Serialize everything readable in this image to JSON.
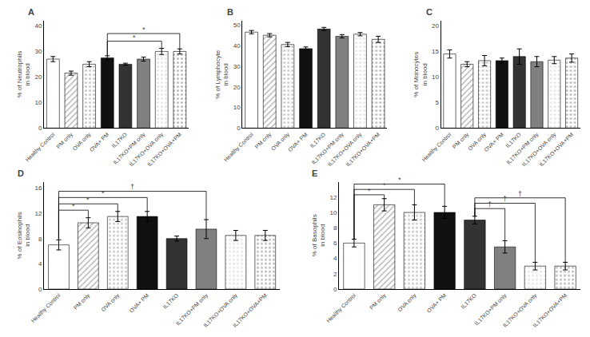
{
  "chart_data": [
    {
      "type": "bar",
      "title": "A",
      "categories": [
        "Healthy Control",
        "PM only",
        "OVA only",
        "OVA+ PM",
        "IL17KO",
        "IL17KO+PM only",
        "IL17KO+OVA only",
        "IL17KO+OVA+PM"
      ],
      "values": [
        27,
        21.5,
        25,
        27.5,
        25,
        27,
        30,
        30
      ],
      "errors": [
        1.0,
        0.8,
        1.0,
        0.8,
        0.4,
        0.8,
        1.2,
        1.0
      ],
      "ylabel": "% of Neutrophils\nin blood",
      "ylim": [
        0,
        42
      ],
      "yticks": [
        0,
        10,
        20,
        30,
        40
      ],
      "colors": [
        "white",
        "#b8b8b8",
        "#cccccc",
        "#111111",
        "#333333",
        "#808080",
        "#e8e8e8",
        "#c0c0c0"
      ],
      "grid": false,
      "annotations": [
        {
          "from": "OVA+ PM",
          "to": "IL17KO+OVA only",
          "y": 34,
          "text": "*"
        },
        {
          "from": "OVA+ PM",
          "to": "IL17KO+OVA+PM",
          "y": 37,
          "text": "*"
        }
      ]
    },
    {
      "type": "bar",
      "title": "B",
      "categories": [
        "Healthy Control",
        "PM only",
        "OVA only",
        "OVA+ PM",
        "IL17KO",
        "IL17KO+PM only",
        "IL17KO+OVA only",
        "IL17KO+OVA+PM"
      ],
      "values": [
        46.5,
        45,
        40.5,
        38.5,
        48,
        44.5,
        45.5,
        43
      ],
      "errors": [
        0.8,
        0.8,
        1.0,
        0.8,
        0.8,
        0.8,
        0.8,
        1.5
      ],
      "ylabel": "% of Lymphocyte\nin blood",
      "ylim": [
        0,
        52
      ],
      "yticks": [
        0,
        10,
        20,
        30,
        40,
        50
      ],
      "colors": [
        "white",
        "#b8b8b8",
        "#cccccc",
        "#111111",
        "#333333",
        "#808080",
        "#e8e8e8",
        "#c0c0c0"
      ],
      "grid": false,
      "annotations": []
    },
    {
      "type": "bar",
      "title": "C",
      "categories": [
        "Healthy Control",
        "PM only",
        "OVA only",
        "OVA+ PM",
        "IL17KO",
        "IL17KO+PM only",
        "IL17KO+OVA only",
        "IL17KO+OVA+PM"
      ],
      "values": [
        14.5,
        12.5,
        13.2,
        13.2,
        14,
        13,
        13.3,
        13.7
      ],
      "errors": [
        0.8,
        0.5,
        1.0,
        0.5,
        1.5,
        1.0,
        0.7,
        0.8
      ],
      "ylabel": "% of Monocytes\nin blood",
      "ylim": [
        0,
        21
      ],
      "yticks": [
        0,
        5,
        10,
        15,
        20
      ],
      "colors": [
        "white",
        "#b8b8b8",
        "#cccccc",
        "#111111",
        "#333333",
        "#808080",
        "#e8e8e8",
        "#c0c0c0"
      ],
      "grid": false,
      "annotations": []
    },
    {
      "type": "bar",
      "title": "D",
      "categories": [
        "Healthy Control",
        "PM only",
        "OVA only",
        "OVA+ PM",
        "IL17KO",
        "IL17KO+PM only",
        "IL17KO+OVA only",
        "IL17KO+OVA+PM"
      ],
      "values": [
        7,
        10.5,
        11.5,
        11.5,
        8,
        9.5,
        8.5,
        8.5
      ],
      "errors": [
        0.8,
        0.8,
        0.8,
        0.8,
        0.4,
        1.5,
        0.8,
        0.8
      ],
      "ylabel": "% of Eosinophils\nin blood",
      "ylim": [
        0,
        17
      ],
      "yticks": [
        0,
        4,
        8,
        12,
        16
      ],
      "colors": [
        "white",
        "#b8b8b8",
        "#cccccc",
        "#111111",
        "#333333",
        "#808080",
        "#e8e8e8",
        "#c0c0c0"
      ],
      "grid": false,
      "annotations": [
        {
          "from": "Healthy Control",
          "to": "PM only",
          "y": 12.5,
          "text": "*"
        },
        {
          "from": "Healthy Control",
          "to": "OVA only",
          "y": 13.5,
          "text": "*"
        },
        {
          "from": "Healthy Control",
          "to": "OVA+ PM",
          "y": 14.5,
          "text": "*"
        },
        {
          "from": "Healthy Control",
          "to": "IL17KO+PM only",
          "y": 15.5,
          "text": "†"
        }
      ]
    },
    {
      "type": "bar",
      "title": "E",
      "categories": [
        "Healthy Control",
        "PM only",
        "OVA only",
        "OVA+ PM",
        "IL17KO",
        "IL17KO+PM only",
        "IL17KO+OVA only",
        "IL17KO+OVA+PM"
      ],
      "values": [
        6,
        11,
        10,
        10,
        9,
        5.5,
        3,
        3
      ],
      "errors": [
        0.5,
        0.8,
        1.0,
        0.8,
        0.5,
        0.8,
        0.5,
        0.5
      ],
      "ylabel": "% of Basophils\nin blood",
      "ylim": [
        0,
        14
      ],
      "yticks": [
        0,
        2,
        4,
        6,
        8,
        10,
        12
      ],
      "colors": [
        "white",
        "#b8b8b8",
        "#cccccc",
        "#111111",
        "#333333",
        "#808080",
        "#e8e8e8",
        "#c0c0c0"
      ],
      "grid": false,
      "annotations": [
        {
          "from": "Healthy Control",
          "to": "PM only",
          "y": 12.3,
          "text": "*"
        },
        {
          "from": "Healthy Control",
          "to": "OVA only",
          "y": 13.0,
          "text": "*"
        },
        {
          "from": "Healthy Control",
          "to": "OVA+ PM",
          "y": 13.7,
          "text": "*"
        },
        {
          "from": "IL17KO",
          "to": "IL17KO+PM only",
          "y": 10.5,
          "text": "†"
        },
        {
          "from": "IL17KO",
          "to": "IL17KO+OVA only",
          "y": 11.2,
          "text": "†"
        },
        {
          "from": "IL17KO",
          "to": "IL17KO+OVA+PM",
          "y": 11.9,
          "text": "†"
        }
      ]
    }
  ]
}
